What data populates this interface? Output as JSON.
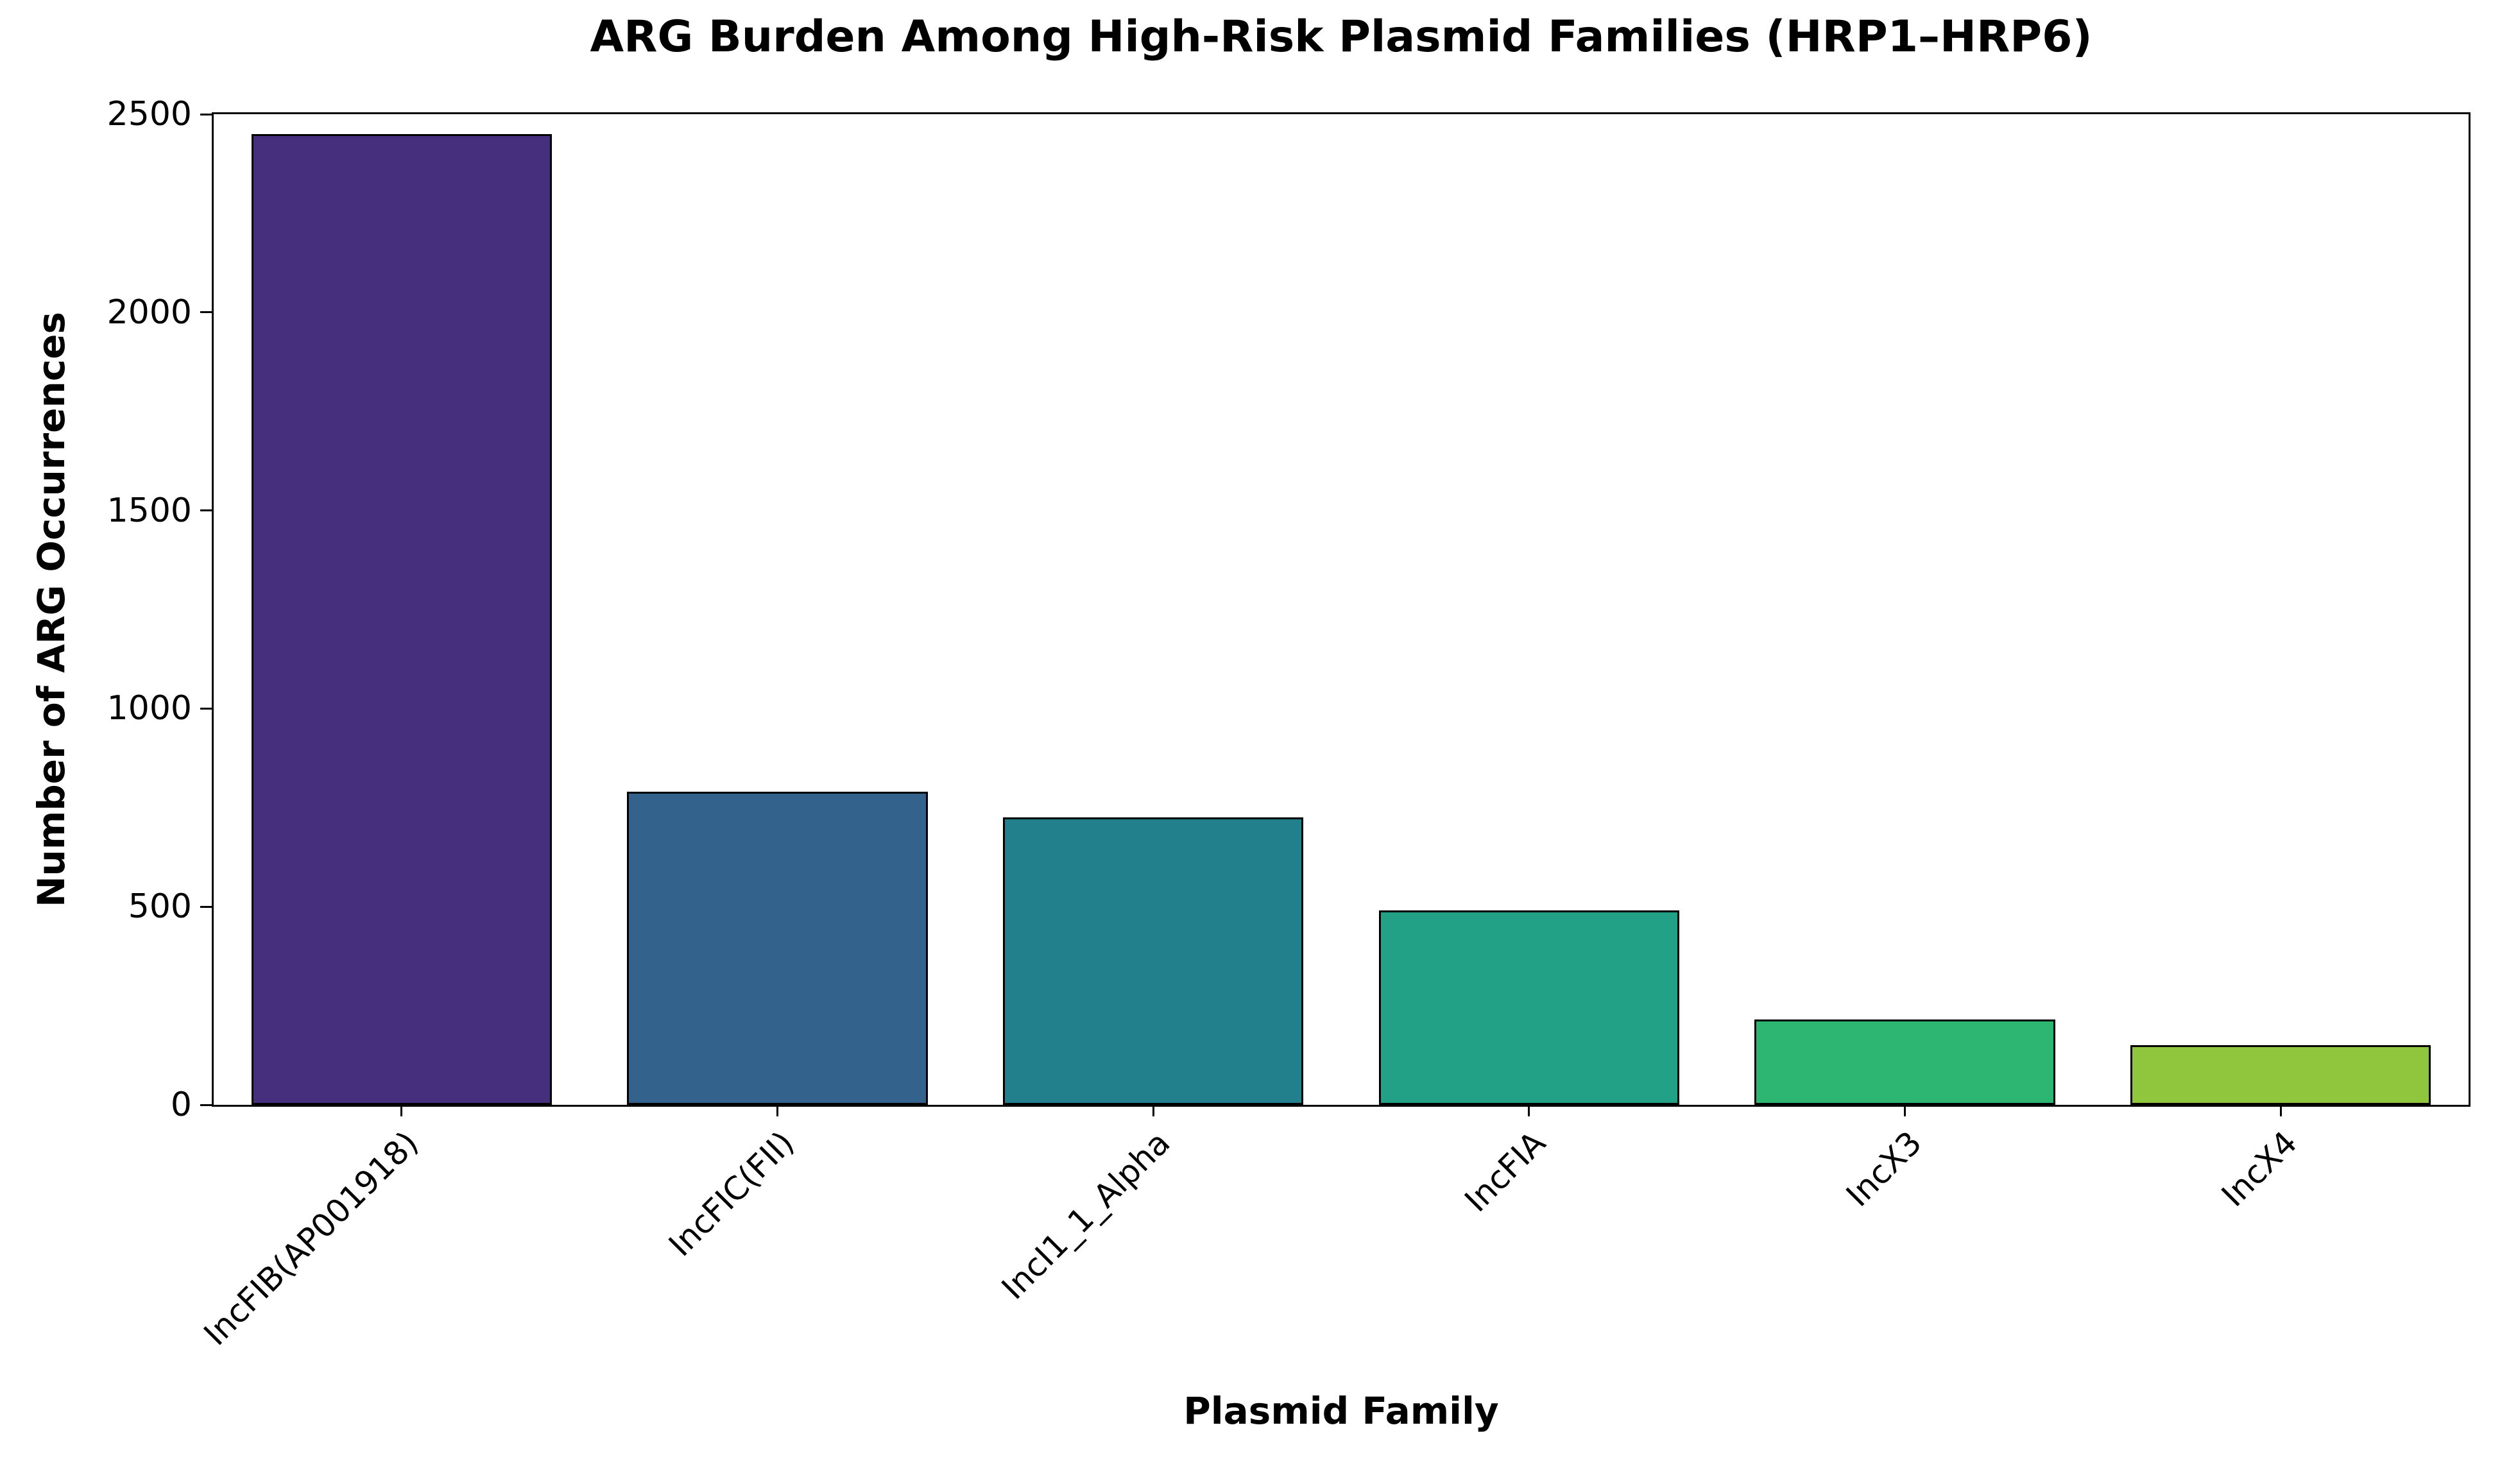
{
  "title": "ARG Burden Among High-Risk Plasmid Families (HRP1–HRP6)",
  "chart_data": {
    "type": "bar",
    "title": "ARG Burden Among High-Risk Plasmid Families (HRP1–HRP6)",
    "xlabel": "Plasmid Family",
    "ylabel": "Number of ARG Occurrences",
    "categories": [
      "IncFIB(AP001918)",
      "IncFIC(FII)",
      "IncI1_1_Alpha",
      "IncFIA",
      "IncX3",
      "IncX4"
    ],
    "values": [
      2450,
      790,
      725,
      490,
      215,
      150
    ],
    "ylim": [
      0,
      2500
    ],
    "yticks": [
      0,
      500,
      1000,
      1500,
      2000,
      2500
    ],
    "bar_colors": [
      "#46307e",
      "#33638d",
      "#21808b",
      "#22a186",
      "#2db672",
      "#8fc63d"
    ],
    "bar_edge_color": "#000000",
    "background_color": "#ffffff",
    "grid": false,
    "legend": false,
    "bar_width_fraction": 0.8,
    "x_tick_rotation_deg": 45
  }
}
